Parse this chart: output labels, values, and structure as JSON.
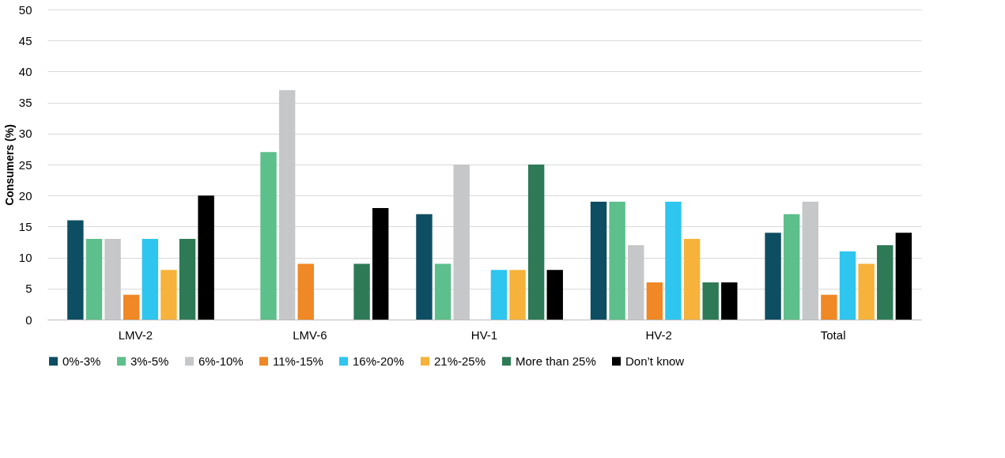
{
  "chart_data": {
    "type": "bar",
    "ylabel": "Consumers (%)",
    "categories": [
      "LMV-2",
      "LMV-6",
      "HV-1",
      "HV-2",
      "Total"
    ],
    "series": [
      {
        "name": "0%-3%",
        "color": "#0e4e62",
        "values": [
          16,
          0,
          17,
          19,
          14
        ]
      },
      {
        "name": "3%-5%",
        "color": "#5dbf8b",
        "values": [
          13,
          27,
          9,
          19,
          17
        ]
      },
      {
        "name": "6%-10%",
        "color": "#c6c7c9",
        "values": [
          13,
          37,
          25,
          12,
          19
        ]
      },
      {
        "name": "11%-15%",
        "color": "#ef8825",
        "values": [
          4,
          9,
          0,
          6,
          4
        ]
      },
      {
        "name": "16%-20%",
        "color": "#2ec5ef",
        "values": [
          13,
          0,
          8,
          19,
          11
        ]
      },
      {
        "name": "21%-25%",
        "color": "#f6b23b",
        "values": [
          8,
          0,
          8,
          13,
          9
        ]
      },
      {
        "name": "More than 25%",
        "color": "#2e7a56",
        "values": [
          13,
          9,
          25,
          6,
          12
        ]
      },
      {
        "name": "Don’t know",
        "color": "#000000",
        "values": [
          20,
          18,
          8,
          6,
          14
        ]
      }
    ],
    "ylim": [
      0,
      50
    ],
    "yticks": [
      0,
      5,
      10,
      15,
      20,
      25,
      30,
      35,
      40,
      45,
      50
    ],
    "grid": "y",
    "legend": "bottom"
  }
}
